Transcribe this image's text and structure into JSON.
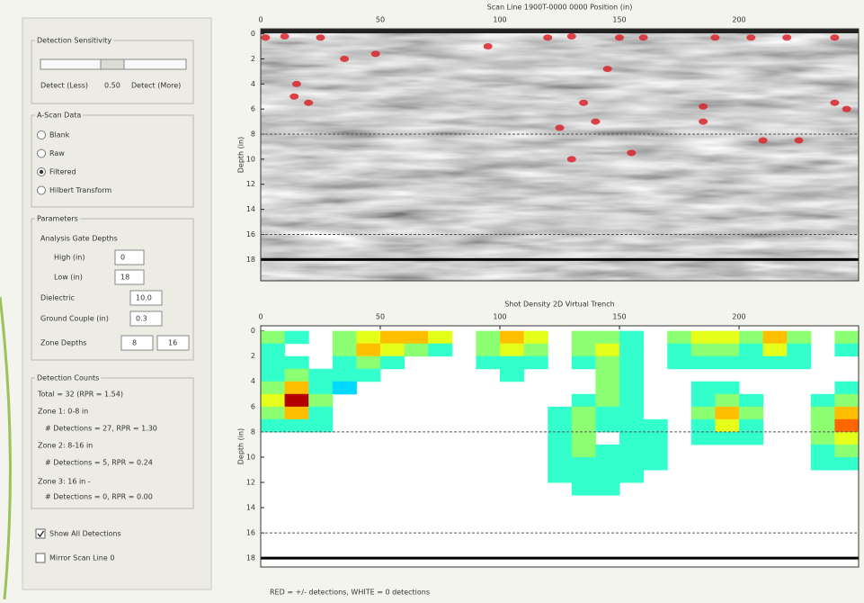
{
  "controls": {
    "sensitivity": {
      "title": "Detection Sensitivity",
      "less": "Detect (Less)",
      "value": "0.50",
      "more": "Detect (More)"
    },
    "ascan": {
      "title": "A-Scan Data",
      "options": [
        "Blank",
        "Raw",
        "Filtered",
        "Hilbert Transform"
      ],
      "selected": 2
    },
    "parameters": {
      "title": "Parameters",
      "gate_title": "Analysis Gate Depths",
      "high_label": "High (in)",
      "high": "0",
      "low_label": "Low (in)",
      "low": "18",
      "dielectric_label": "Dielectric",
      "dielectric": "10.0",
      "couple_label": "Ground Couple (in)",
      "couple": "0.3",
      "zones_label": "Zone Depths",
      "zones": [
        8,
        16
      ]
    },
    "counts": {
      "title": "Detection Counts",
      "lines": [
        "Total = 32 (RPR = 1.54)",
        "Zone 1: 0-8 in",
        "# Detections = 27, RPR = 1.30",
        "Zone 2: 8-16 in",
        "# Detections = 5, RPR = 0.24",
        "Zone 3: 16 in -",
        "# Detections = 0, RPR = 0.00"
      ]
    },
    "show_all": {
      "label": "Show All Detections",
      "checked": true
    },
    "mirror": {
      "label": "Mirror Scan Line 0",
      "checked": false
    }
  },
  "chart_data": [
    {
      "type": "scatter",
      "title": "Scan Line 1900T-0000 0000 Position (in)",
      "ylabel": "Depth (in)",
      "xlim": [
        0,
        250
      ],
      "ylim": [
        -0.4,
        19.7
      ],
      "xticks": [
        0,
        50,
        100,
        150,
        200
      ],
      "yticks": [
        0,
        2,
        4,
        6,
        8,
        10,
        12,
        14,
        16,
        18
      ],
      "color": "#d8262b",
      "x": [
        2,
        10,
        25,
        35,
        48,
        15,
        20,
        14,
        95,
        120,
        130,
        150,
        160,
        145,
        135,
        140,
        125,
        130,
        155,
        185,
        185,
        210,
        225,
        240,
        245,
        190,
        205,
        220,
        240
      ],
      "y": [
        0.3,
        0.2,
        0.3,
        2,
        1.6,
        4,
        5.5,
        5,
        1,
        0.3,
        0.2,
        0.3,
        0.3,
        2.8,
        5.5,
        7,
        7.5,
        10,
        9.5,
        5.8,
        7,
        8.5,
        8.5,
        5.5,
        6,
        0.3,
        0.3,
        0.3,
        0.3
      ]
    },
    {
      "type": "heatmap",
      "title": "Shot Density 2D Virtual Trench",
      "ylabel": "Depth (in)",
      "xlim": [
        0,
        250
      ],
      "ylim": [
        -0.4,
        18.7
      ],
      "xticks": [
        0,
        50,
        100,
        150,
        200
      ],
      "yticks": [
        0,
        2,
        4,
        6,
        8,
        10,
        12,
        14,
        16,
        18
      ],
      "xbins": [
        0,
        10,
        20,
        30,
        40,
        50,
        60,
        70,
        80,
        90,
        100,
        110,
        120,
        130,
        140,
        150,
        160,
        170,
        180,
        190,
        200,
        210,
        220,
        230,
        240,
        250
      ],
      "ybins": [
        0,
        1,
        2,
        3,
        4,
        5,
        6,
        7,
        8,
        9,
        10,
        11,
        12,
        13
      ],
      "z": [
        [
          3,
          2,
          0,
          3,
          4,
          5,
          5,
          4,
          0,
          3,
          5,
          4,
          0,
          3,
          3,
          2,
          0,
          3,
          4,
          4,
          3,
          5,
          3,
          0,
          3
        ],
        [
          2,
          0,
          0,
          3,
          5,
          4,
          3,
          2,
          0,
          3,
          4,
          3,
          0,
          3,
          4,
          2,
          0,
          2,
          3,
          3,
          2,
          4,
          2,
          0,
          2
        ],
        [
          2,
          2,
          0,
          2,
          3,
          2,
          0,
          0,
          0,
          2,
          2,
          2,
          0,
          2,
          3,
          2,
          0,
          2,
          2,
          2,
          2,
          2,
          2,
          0,
          0
        ],
        [
          2,
          3,
          2,
          2,
          2,
          0,
          0,
          0,
          0,
          0,
          2,
          0,
          0,
          0,
          3,
          2,
          0,
          0,
          0,
          0,
          0,
          0,
          0,
          0,
          0
        ],
        [
          3,
          5,
          2,
          1,
          0,
          0,
          0,
          0,
          0,
          0,
          0,
          0,
          0,
          0,
          3,
          2,
          0,
          0,
          2,
          2,
          0,
          0,
          0,
          0,
          2
        ],
        [
          4,
          8,
          3,
          0,
          0,
          0,
          0,
          0,
          0,
          0,
          0,
          0,
          0,
          2,
          3,
          2,
          0,
          0,
          2,
          3,
          2,
          0,
          0,
          2,
          3
        ],
        [
          3,
          5,
          2,
          0,
          0,
          0,
          0,
          0,
          0,
          0,
          0,
          0,
          2,
          3,
          2,
          2,
          0,
          0,
          3,
          5,
          3,
          0,
          0,
          3,
          5
        ],
        [
          2,
          2,
          2,
          0,
          0,
          0,
          0,
          0,
          0,
          0,
          0,
          0,
          2,
          3,
          2,
          2,
          2,
          0,
          2,
          4,
          2,
          0,
          0,
          3,
          6
        ],
        [
          0,
          0,
          0,
          0,
          0,
          0,
          0,
          0,
          0,
          0,
          0,
          0,
          2,
          3,
          0,
          2,
          2,
          0,
          2,
          2,
          2,
          0,
          0,
          3,
          4
        ],
        [
          0,
          0,
          0,
          0,
          0,
          0,
          0,
          0,
          0,
          0,
          0,
          0,
          2,
          3,
          2,
          2,
          2,
          0,
          0,
          0,
          0,
          0,
          0,
          2,
          3
        ],
        [
          0,
          0,
          0,
          0,
          0,
          0,
          0,
          0,
          0,
          0,
          0,
          0,
          2,
          2,
          2,
          2,
          2,
          0,
          0,
          0,
          0,
          0,
          0,
          2,
          2
        ],
        [
          0,
          0,
          0,
          0,
          0,
          0,
          0,
          0,
          0,
          0,
          0,
          0,
          2,
          2,
          2,
          2,
          0,
          0,
          0,
          0,
          0,
          0,
          0,
          0,
          0
        ],
        [
          0,
          0,
          0,
          0,
          0,
          0,
          0,
          0,
          0,
          0,
          0,
          0,
          0,
          2,
          2,
          0,
          0,
          0,
          0,
          0,
          0,
          0,
          0,
          0,
          0
        ]
      ]
    }
  ],
  "footer": "RED = +/- detections, WHITE = 0 detections"
}
